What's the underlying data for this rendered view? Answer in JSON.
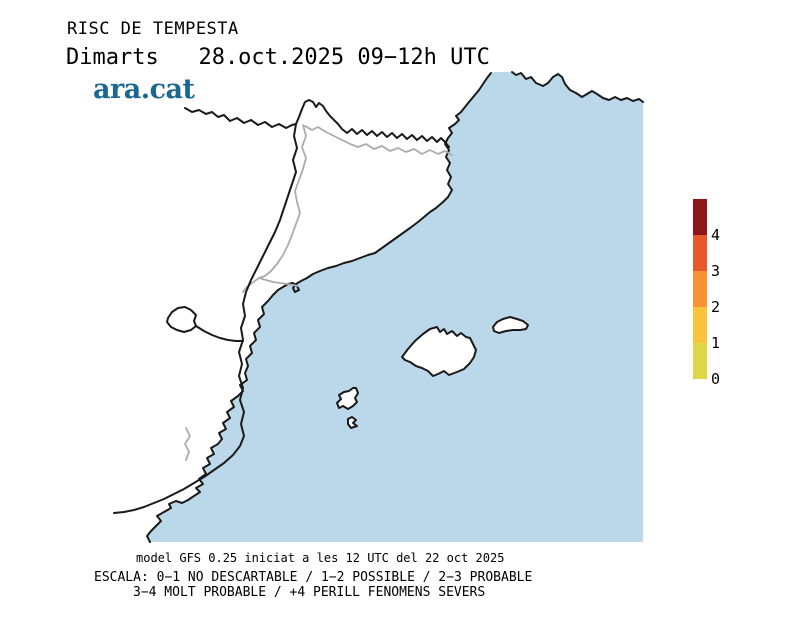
{
  "header": {
    "title": "RISC DE TEMPESTA",
    "subtitle": "Dimarts   28.oct.2025 09−12h UTC",
    "logo": "ara.cat"
  },
  "colorbar": {
    "tick_labels": [
      "4",
      "3",
      "2",
      "1",
      "0"
    ],
    "segments": [
      {
        "level": "+4",
        "color": "#8E161B"
      },
      {
        "level": "3-4",
        "color": "#E7592A"
      },
      {
        "level": "2-3",
        "color": "#FB9232"
      },
      {
        "level": "1-2",
        "color": "#FDC23C"
      },
      {
        "level": "0-1",
        "color": "#DED747"
      }
    ]
  },
  "footer": {
    "model_line": "model GFS 0.25 iniciat a les 12 UTC del 22 oct 2025",
    "scale_line1": "ESCALA: 0−1 NO DESCARTABLE / 1−2 POSSIBLE / 2−3 PROBABLE",
    "scale_line2": "3−4 MOLT PROBABLE / +4 PERILL FENOMENS SEVERS"
  },
  "map": {
    "sea_color": "#BBD7EA",
    "land_color": "#FFFFFF",
    "coastline_color": "#1A1A1A",
    "region_border_color": "#ABABAB"
  }
}
